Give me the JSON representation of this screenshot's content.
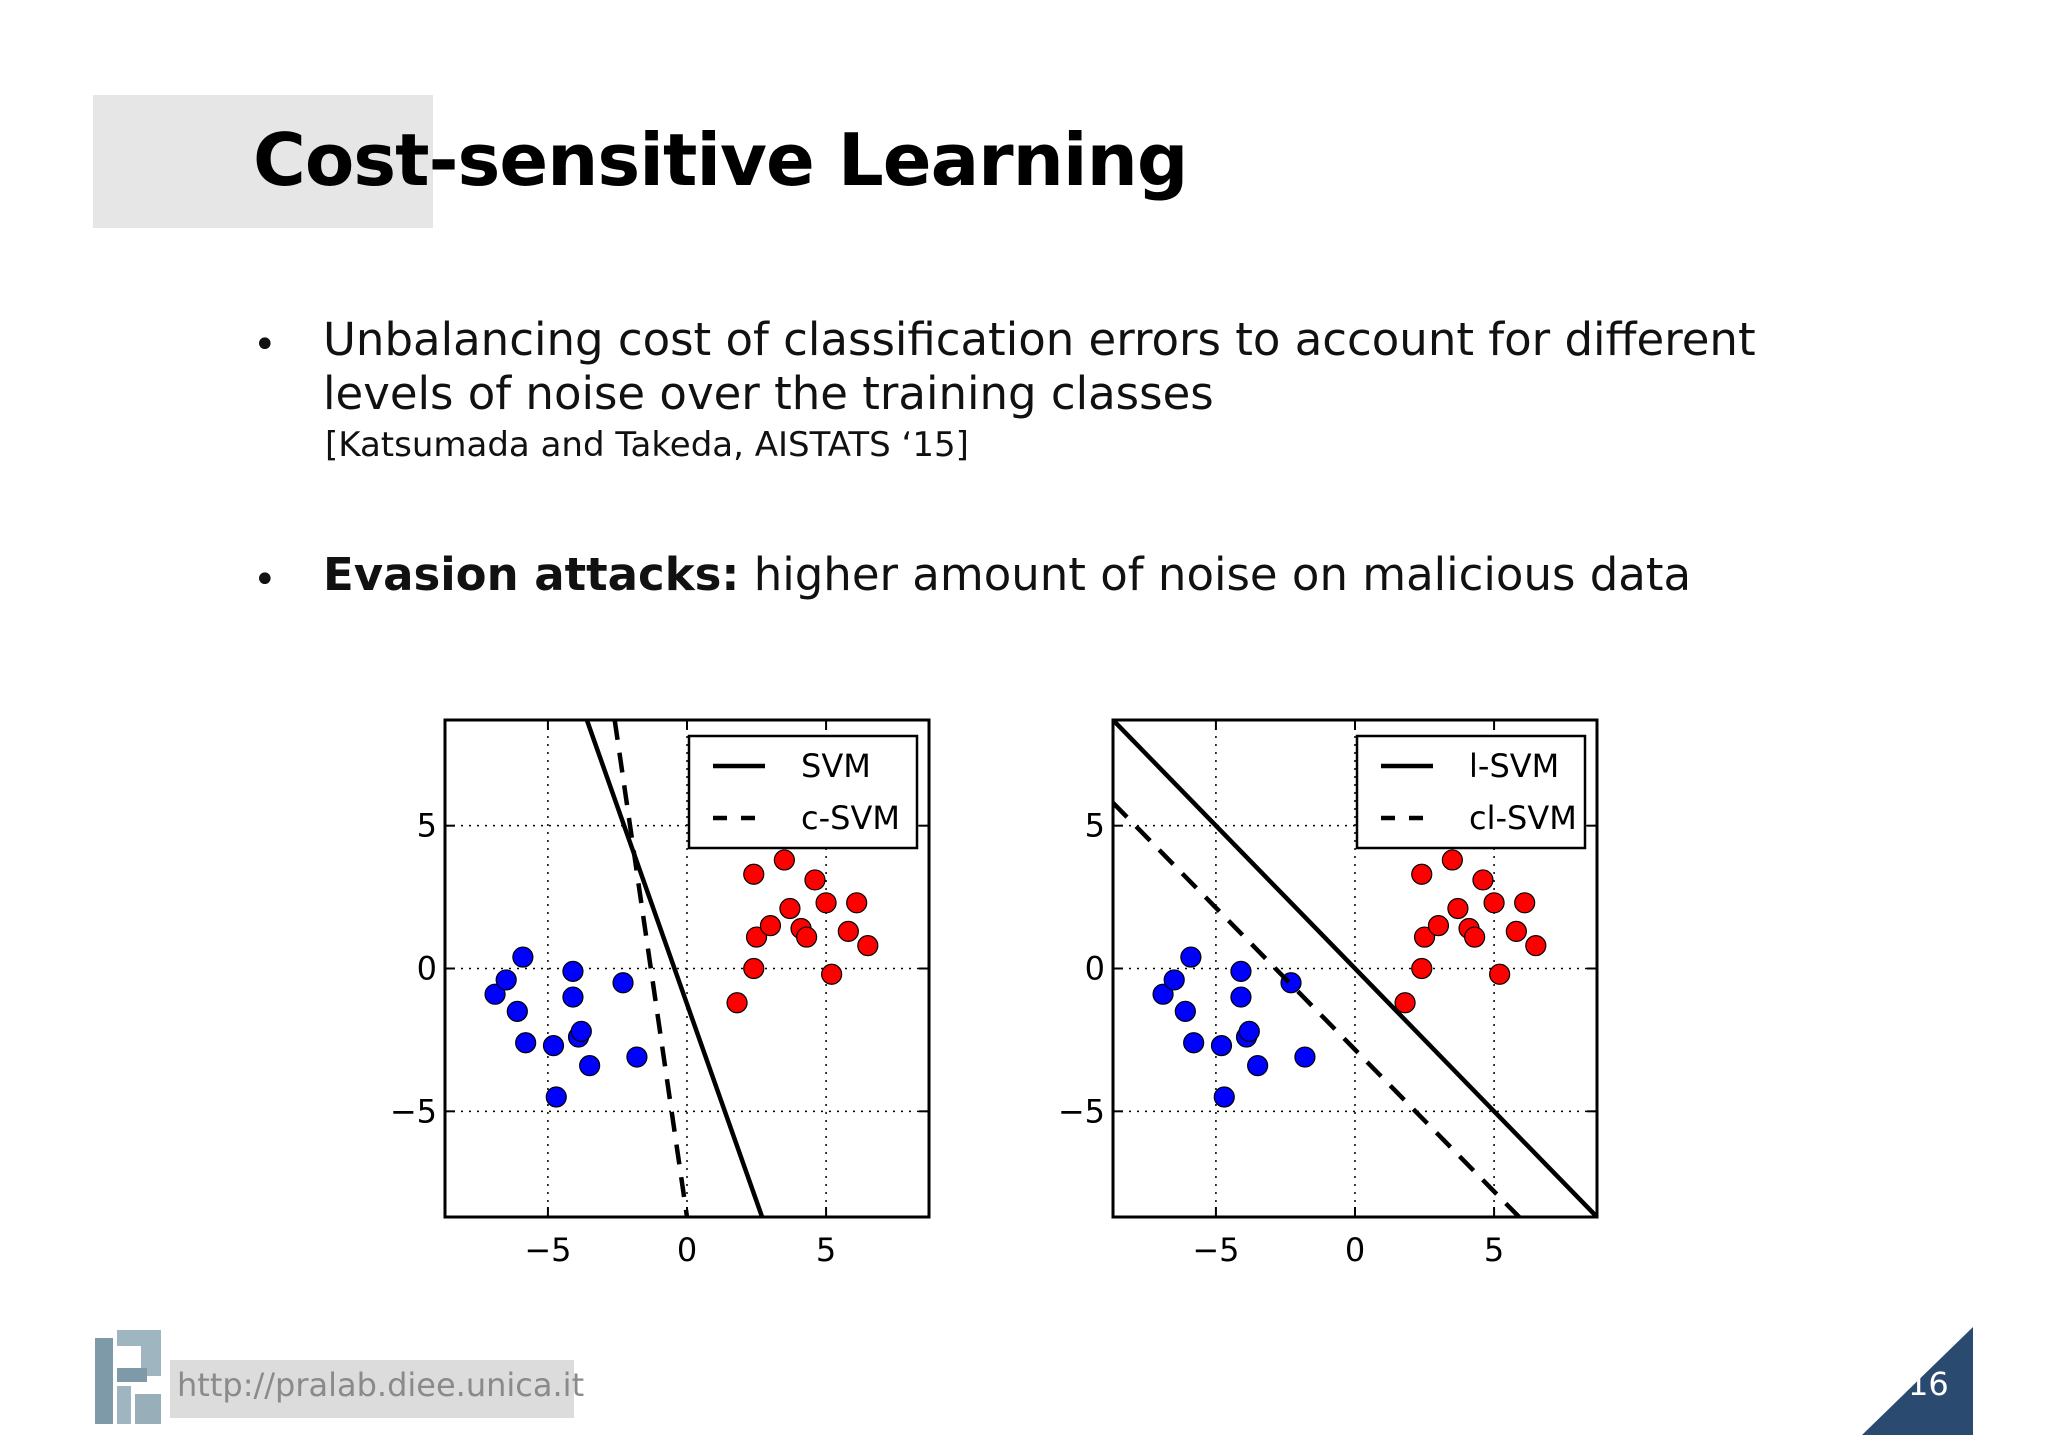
{
  "slide": {
    "title": "Cost-sensitive Learning",
    "bullets": [
      {
        "text_line1": "Unbalancing cost of classification errors to account for different",
        "text_line2": "levels of noise over the training classes",
        "citation": "[Katsumada and Takeda, AISTATS ‘15]"
      },
      {
        "bold": "Evasion attacks:",
        "text": " higher amount of noise on malicious data"
      }
    ],
    "footer_url": "http://pralab.diee.unica.it",
    "page_number": "16",
    "colors": {
      "accent": "#2b4a6f",
      "title_box": "#e6e6e6",
      "blue": "#0000ff",
      "red": "#ff0000"
    }
  },
  "chart_data": [
    {
      "type": "scatter",
      "xlim": [
        -8.7,
        8.7
      ],
      "ylim": [
        -8.7,
        8.7
      ],
      "xticks": [
        -5,
        0,
        5
      ],
      "yticks": [
        5,
        0,
        -5
      ],
      "tick_labels": [
        "−5",
        "0",
        "5"
      ],
      "grid": true,
      "legend_placement": "top-right",
      "series": [
        {
          "color": "#0000ff",
          "points": [
            [
              -6.9,
              -0.9
            ],
            [
              -6.5,
              -0.4
            ],
            [
              -6.1,
              -1.5
            ],
            [
              -5.9,
              0.4
            ],
            [
              -5.8,
              -2.6
            ],
            [
              -4.8,
              -2.7
            ],
            [
              -4.7,
              -4.5
            ],
            [
              -4.1,
              -0.1
            ],
            [
              -4.1,
              -1.0
            ],
            [
              -3.9,
              -2.4
            ],
            [
              -3.8,
              -2.2
            ],
            [
              -3.5,
              -3.4
            ],
            [
              -2.3,
              -0.5
            ],
            [
              -1.8,
              -3.1
            ]
          ]
        },
        {
          "color": "#ff0000",
          "points": [
            [
              1.8,
              -1.2
            ],
            [
              2.4,
              0.0
            ],
            [
              2.4,
              3.3
            ],
            [
              2.5,
              1.1
            ],
            [
              3.0,
              1.5
            ],
            [
              3.5,
              3.8
            ],
            [
              3.7,
              2.1
            ],
            [
              4.1,
              1.4
            ],
            [
              4.3,
              1.1
            ],
            [
              4.6,
              3.1
            ],
            [
              5.0,
              2.3
            ],
            [
              5.2,
              -0.2
            ],
            [
              5.8,
              1.3
            ],
            [
              6.1,
              2.3
            ],
            [
              6.5,
              0.8
            ]
          ]
        }
      ],
      "lines": [
        {
          "name": "SVM",
          "style": "solid",
          "from": [
            -3.6,
            8.7
          ],
          "to": [
            2.7,
            -8.7
          ]
        },
        {
          "name": "c-SVM",
          "style": "dashed",
          "from": [
            -2.6,
            8.7
          ],
          "to": [
            0.0,
            -8.7
          ]
        }
      ]
    },
    {
      "type": "scatter",
      "xlim": [
        -8.7,
        8.7
      ],
      "ylim": [
        -8.7,
        8.7
      ],
      "xticks": [
        -5,
        0,
        5
      ],
      "yticks": [
        5,
        0,
        -5
      ],
      "tick_labels": [
        "−5",
        "0",
        "5"
      ],
      "grid": true,
      "legend_placement": "top-right",
      "series": [
        {
          "color": "#0000ff",
          "points": [
            [
              -6.9,
              -0.9
            ],
            [
              -6.5,
              -0.4
            ],
            [
              -6.1,
              -1.5
            ],
            [
              -5.9,
              0.4
            ],
            [
              -5.8,
              -2.6
            ],
            [
              -4.8,
              -2.7
            ],
            [
              -4.7,
              -4.5
            ],
            [
              -4.1,
              -0.1
            ],
            [
              -4.1,
              -1.0
            ],
            [
              -3.9,
              -2.4
            ],
            [
              -3.8,
              -2.2
            ],
            [
              -3.5,
              -3.4
            ],
            [
              -2.3,
              -0.5
            ],
            [
              -1.8,
              -3.1
            ]
          ]
        },
        {
          "color": "#ff0000",
          "points": [
            [
              1.8,
              -1.2
            ],
            [
              2.4,
              0.0
            ],
            [
              2.4,
              3.3
            ],
            [
              2.5,
              1.1
            ],
            [
              3.0,
              1.5
            ],
            [
              3.5,
              3.8
            ],
            [
              3.7,
              2.1
            ],
            [
              4.1,
              1.4
            ],
            [
              4.3,
              1.1
            ],
            [
              4.6,
              3.1
            ],
            [
              5.0,
              2.3
            ],
            [
              5.2,
              -0.2
            ],
            [
              5.8,
              1.3
            ],
            [
              6.1,
              2.3
            ],
            [
              6.5,
              0.8
            ]
          ]
        }
      ],
      "lines": [
        {
          "name": "l-SVM",
          "style": "solid",
          "from": [
            -8.7,
            8.7
          ],
          "to": [
            8.7,
            -8.7
          ]
        },
        {
          "name": "cl-SVM",
          "style": "dashed",
          "from": [
            -8.7,
            5.8
          ],
          "to": [
            5.9,
            -8.7
          ]
        }
      ]
    }
  ]
}
